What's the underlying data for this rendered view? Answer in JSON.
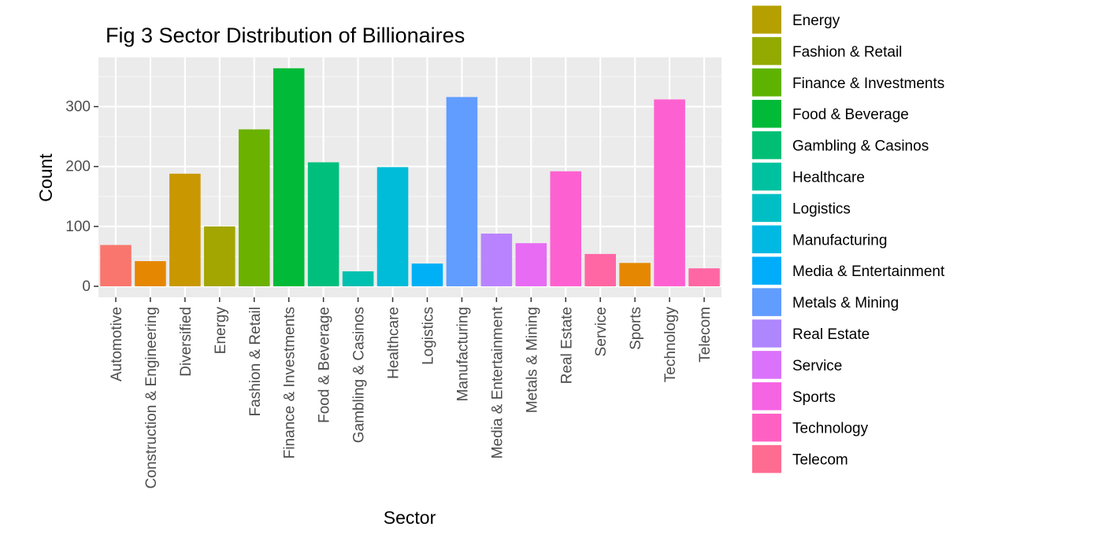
{
  "chart_data": {
    "type": "bar",
    "title": "Fig 3 Sector Distribution of Billionaires",
    "xlabel": "Sector",
    "ylabel": "Count",
    "ylim": [
      0,
      380
    ],
    "yticks": [
      0,
      100,
      200,
      300
    ],
    "grid": true,
    "legend_position": "right",
    "categories": [
      "Automotive",
      "Construction & Engineering",
      "Diversified",
      "Energy",
      "Fashion & Retail",
      "Finance & Investments",
      "Food & Beverage",
      "Gambling & Casinos",
      "Healthcare",
      "Logistics",
      "Manufacturing",
      "Media & Entertainment",
      "Metals & Mining",
      "Real Estate",
      "Service",
      "Sports",
      "Technology",
      "Telecom"
    ],
    "values": [
      69,
      42,
      188,
      100,
      262,
      364,
      207,
      25,
      199,
      38,
      316,
      88,
      72,
      192,
      54,
      39,
      312,
      30
    ],
    "colors": [
      "#F8766D",
      "#E58700",
      "#C99800",
      "#A3A500",
      "#6BB100",
      "#00BA38",
      "#00BF7D",
      "#00C0AF",
      "#00BCD8",
      "#00B0F6",
      "#619CFF",
      "#B983FF",
      "#E76BF3",
      "#FD61D1",
      "#FF67A4",
      "#E58700",
      "#FD61D1",
      "#FF67A4"
    ],
    "legend_entries": [
      {
        "label": "Energy",
        "color": "#B5A000"
      },
      {
        "label": "Fashion & Retail",
        "color": "#93AA00"
      },
      {
        "label": "Finance & Investments",
        "color": "#5EB300"
      },
      {
        "label": "Food & Beverage",
        "color": "#00BA38"
      },
      {
        "label": "Gambling & Casinos",
        "color": "#00BF74"
      },
      {
        "label": "Healthcare",
        "color": "#00C19F"
      },
      {
        "label": "Logistics",
        "color": "#00BFC4"
      },
      {
        "label": "Manufacturing",
        "color": "#00B9E3"
      },
      {
        "label": "Media & Entertainment",
        "color": "#00ADFA"
      },
      {
        "label": "Metals & Mining",
        "color": "#619CFF"
      },
      {
        "label": "Real Estate",
        "color": "#AE87FF"
      },
      {
        "label": "Service",
        "color": "#DB72FB"
      },
      {
        "label": "Sports",
        "color": "#F564E3"
      },
      {
        "label": "Technology",
        "color": "#FF61C3"
      },
      {
        "label": "Telecom",
        "color": "#FF6C91"
      }
    ]
  }
}
